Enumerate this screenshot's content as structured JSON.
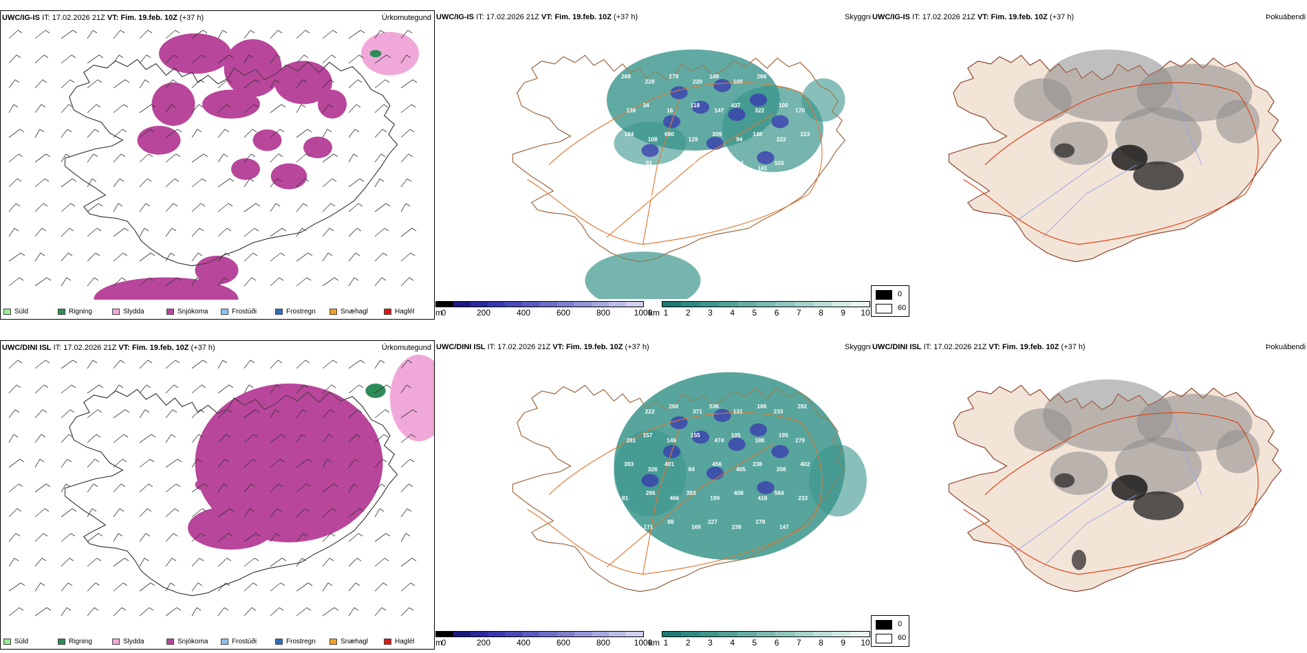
{
  "rows": [
    {
      "model": "UWC/IG-IS",
      "it_label": "IT:",
      "it_value": "17.02.2026 21Z",
      "vt_label": "VT:",
      "vt_value": "Fim. 19.feb. 10Z",
      "lead": "(+37 h)",
      "peaks": [
        "268",
        "228",
        "279",
        "220",
        "149",
        "100",
        "266",
        "121",
        "185",
        "139",
        "34",
        "16",
        "118",
        "147",
        "437",
        "322",
        "100",
        "170",
        "184",
        "108",
        "680",
        "129",
        "309",
        "94",
        "148",
        "222",
        "223",
        "116",
        "91",
        "103",
        "265",
        "141",
        "144",
        "141",
        "103",
        "162",
        "76",
        "257"
      ]
    },
    {
      "model": "UWC/DINI ISL",
      "it_label": "IT:",
      "it_value": "17.02.2026 21Z",
      "vt_label": "VT:",
      "vt_value": "Fim. 19.feb. 10Z",
      "lead": "(+37 h)",
      "peaks": [
        "196",
        "222",
        "260",
        "371",
        "536",
        "131",
        "186",
        "233",
        "282",
        "281",
        "157",
        "146",
        "155",
        "474",
        "105",
        "188",
        "195",
        "279",
        "393",
        "326",
        "401",
        "84",
        "456",
        "405",
        "238",
        "208",
        "402",
        "81",
        "266",
        "466",
        "393",
        "199",
        "408",
        "418",
        "584",
        "233",
        "481",
        "171",
        "88",
        "169",
        "227",
        "238",
        "278",
        "147"
      ]
    }
  ],
  "titles": {
    "precip": "Úrkomutegund",
    "cloud": "Skyggni",
    "fog": "Þokuábendi"
  },
  "precip_legend": [
    {
      "label": "Súld",
      "color": "#98e898"
    },
    {
      "label": "Rigning",
      "color": "#2e8b57"
    },
    {
      "label": "Slydda",
      "color": "#f0a8d8"
    },
    {
      "label": "Snjókoma",
      "color": "#b8469a"
    },
    {
      "label": "Frostúði",
      "color": "#90c0f0"
    },
    {
      "label": "Frostregn",
      "color": "#2d6fbe"
    },
    {
      "label": "Snæhagl",
      "color": "#f0a020"
    },
    {
      "label": "Haglél",
      "color": "#e01818"
    }
  ],
  "elev_bar": {
    "unit": "m",
    "ticks": [
      "0",
      "200",
      "400",
      "600",
      "800",
      "1000"
    ],
    "colors": [
      "#000000",
      "#1a1a80",
      "#2a2a9c",
      "#3838b0",
      "#4a4ab8",
      "#5a5ac0",
      "#6e6ec8",
      "#8080d0",
      "#9494d8",
      "#a8a8e0",
      "#bcbce8",
      "#d0d0f0"
    ]
  },
  "vis_bar": {
    "unit": "km",
    "ticks": [
      "1",
      "2",
      "3",
      "4",
      "5",
      "6",
      "7",
      "8",
      "9",
      "10"
    ],
    "colors": [
      "#1e7a72",
      "#2e8a80",
      "#3f968c",
      "#52a298",
      "#66aea4",
      "#7abab0",
      "#8fc6bd",
      "#a5d2ca",
      "#bcded8",
      "#d2eae5",
      "#e8f4f2"
    ]
  },
  "fog_legend": [
    {
      "label": "0",
      "color": "#000000"
    },
    {
      "label": "60",
      "color": "#ffffff"
    }
  ],
  "colors": {
    "snow": "#b8469a",
    "sleet": "#f0a8d8",
    "rain": "#2e8b57",
    "teal": "#3a958c",
    "roads": "#e07830",
    "fog_land": "#f3e4d8",
    "rivers": "#8aa0f0"
  }
}
